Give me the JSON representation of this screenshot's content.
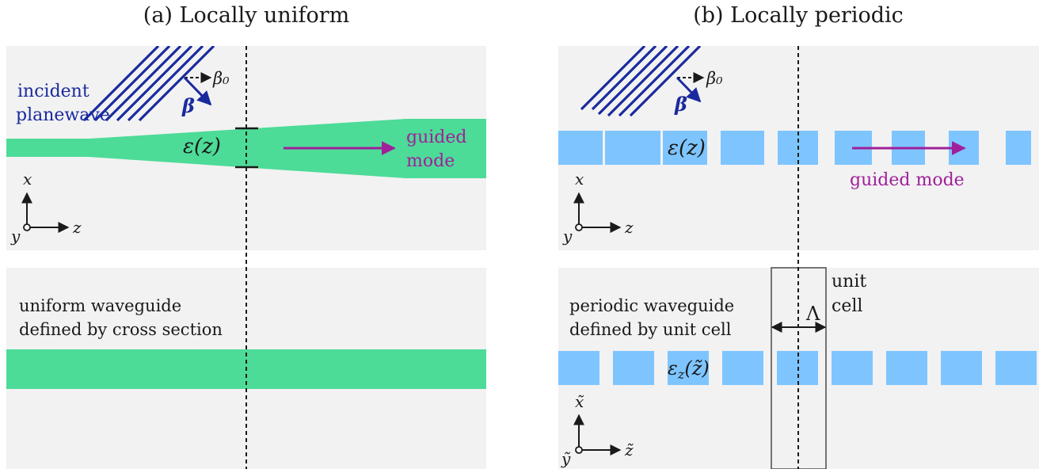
{
  "panel_a": {
    "title": "(a) Locally uniform",
    "incident_line1": "incident",
    "incident_line2": "planewave",
    "beta0": "β₀",
    "beta": "β",
    "permittivity": "ε(z)",
    "guided_line1": "guided",
    "guided_line2": "mode",
    "axis_x": "x",
    "axis_y": "y",
    "axis_z": "z",
    "bottom_line1": "uniform waveguide",
    "bottom_line2": "defined by cross section"
  },
  "panel_b": {
    "title": "(b) Locally periodic",
    "beta0": "β₀",
    "beta": "β",
    "permittivity": "ε(z)",
    "guided": "guided mode",
    "axis_x": "x",
    "axis_y": "y",
    "axis_z": "z",
    "unit_line1": "unit",
    "unit_line2": "cell",
    "period": "Λ",
    "bottom_line1": "periodic waveguide",
    "bottom_line2": "defined by unit cell",
    "local_permittivity_main": "ε",
    "local_permittivity_sub": "z",
    "local_permittivity_arg": "(z̃)",
    "axis_x_tilde": "x̃",
    "axis_y_tilde": "ỹ",
    "axis_z_tilde": "z̃"
  },
  "colors": {
    "panel_bg": "#f2f2f2",
    "waveguide_uniform": "#4ddb98",
    "waveguide_periodic": "#7ec5ff",
    "incident_wave": "#1a2a9e",
    "guided_mode": "#a0209a",
    "text": "#1a1a1a"
  }
}
